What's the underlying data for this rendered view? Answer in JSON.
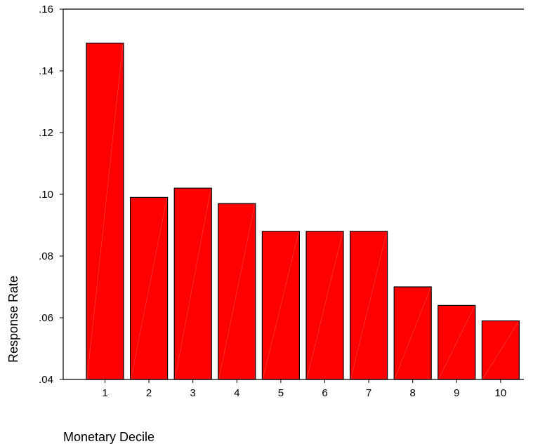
{
  "chart_data": {
    "type": "bar",
    "categories": [
      "1",
      "2",
      "3",
      "4",
      "5",
      "6",
      "7",
      "8",
      "9",
      "10"
    ],
    "values": [
      0.149,
      0.099,
      0.102,
      0.097,
      0.088,
      0.088,
      0.088,
      0.07,
      0.064,
      0.059
    ],
    "xlabel": "Monetary Decile",
    "ylabel": "Response Rate",
    "ylim": [
      0.04,
      0.16
    ],
    "yticks": [
      0.04,
      0.06,
      0.08,
      0.1,
      0.12,
      0.14,
      0.16
    ],
    "ytick_labels": [
      ".04",
      ".06",
      ".08",
      ".10",
      ".12",
      ".14",
      ".16"
    ],
    "grid": false,
    "bar_color": "#ff0000",
    "edge_color": "#000000"
  }
}
